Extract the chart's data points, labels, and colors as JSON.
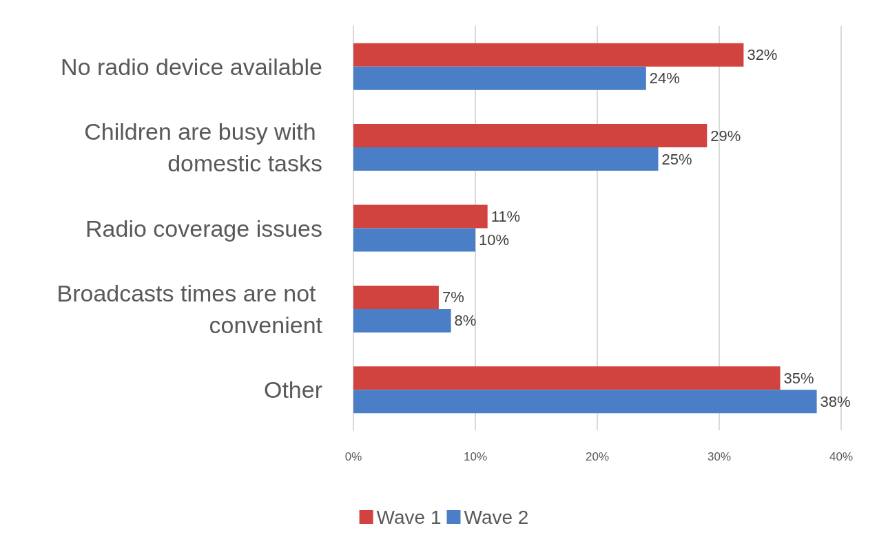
{
  "chart_data": {
    "type": "bar",
    "orientation": "horizontal",
    "categories": [
      "No radio device available",
      "Children are busy with domestic tasks",
      "Radio coverage issues",
      "Broadcasts times are not convenient",
      "Other"
    ],
    "series": [
      {
        "name": "Wave 1",
        "color": "#d0433f",
        "values": [
          32,
          29,
          11,
          7,
          35
        ],
        "value_labels": [
          "32%",
          "29%",
          "11%",
          "7%",
          "35%"
        ]
      },
      {
        "name": "Wave 2",
        "color": "#4a7fc8",
        "values": [
          24,
          25,
          10,
          8,
          38
        ],
        "value_labels": [
          "24%",
          "25%",
          "10%",
          "8%",
          "38%"
        ]
      }
    ],
    "xlim": [
      0,
      40
    ],
    "xticks": [
      {
        "value": 0,
        "label": "0%"
      },
      {
        "value": 10,
        "label": "10%"
      },
      {
        "value": 20,
        "label": "20%"
      },
      {
        "value": 30,
        "label": "30%"
      },
      {
        "value": 40,
        "label": "40%"
      }
    ],
    "grid": "x",
    "legend": "bottom"
  }
}
